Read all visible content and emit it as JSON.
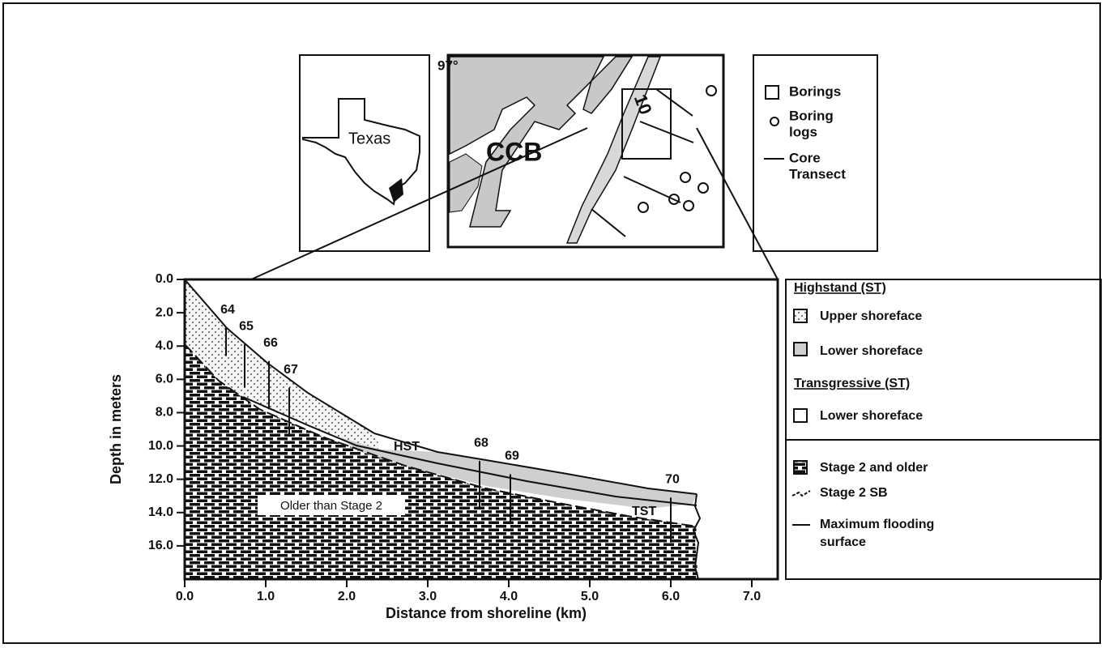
{
  "maps": {
    "longitude": "97°",
    "texas_label": "Texas",
    "bay_label": "CCB",
    "route_label": "10"
  },
  "map_legend": [
    {
      "lines": [
        "Borings"
      ]
    },
    {
      "lines": [
        "Boring",
        "logs"
      ]
    },
    {
      "lines": [
        "Core",
        "Transect"
      ]
    }
  ],
  "section": {
    "ylabel": "Depth in meters",
    "xlabel": "Distance from shoreline (km)",
    "xlim": [
      0,
      7.32
    ],
    "ylim": [
      0,
      18
    ],
    "xticks": [
      {
        "value": 0,
        "label": "0.0"
      },
      {
        "value": 1,
        "label": "1.0"
      },
      {
        "value": 2,
        "label": "2.0"
      },
      {
        "value": 3,
        "label": "3.0"
      },
      {
        "value": 4,
        "label": "4.0"
      },
      {
        "value": 5,
        "label": "5.0"
      },
      {
        "value": 6,
        "label": "6.0"
      },
      {
        "value": 7,
        "label": "7.0"
      }
    ],
    "yticks": [
      {
        "value": 0,
        "label": "0.0"
      },
      {
        "value": 2,
        "label": "2.0"
      },
      {
        "value": 4,
        "label": "4.0"
      },
      {
        "value": 6,
        "label": "6.0"
      },
      {
        "value": 8,
        "label": "8.0"
      },
      {
        "value": 10,
        "label": "10.0"
      },
      {
        "value": 12,
        "label": "12.0"
      },
      {
        "value": 14,
        "label": "14.0"
      },
      {
        "value": 16,
        "label": "16.0"
      }
    ],
    "boreholes": [
      {
        "label": "64",
        "x": 0.51,
        "top": 2.9,
        "bottom": 4.6
      },
      {
        "label": "65",
        "x": 0.74,
        "top": 3.9,
        "bottom": 6.5
      },
      {
        "label": "66",
        "x": 1.04,
        "top": 4.9,
        "bottom": 7.8
      },
      {
        "label": "67",
        "x": 1.29,
        "top": 6.5,
        "bottom": 9.3
      },
      {
        "label": "68",
        "x": 3.64,
        "top": 10.9,
        "bottom": 13.7
      },
      {
        "label": "69",
        "x": 4.02,
        "top": 11.7,
        "bottom": 14.7
      },
      {
        "label": "70",
        "x": 6.0,
        "top": 13.1,
        "bottom": 15.8
      }
    ],
    "annotations": {
      "hst": "HST",
      "tst": "TST",
      "older": "Older than Stage 2"
    }
  },
  "legend": {
    "highstand": "Highstand (ST)",
    "upper_shoreface": "Upper shoreface",
    "lower_shoreface_hst": "Lower shoreface",
    "transgressive": "Transgressive (ST)",
    "lower_shoreface_tst": "Lower shoreface",
    "stage2_older": "Stage 2 and older",
    "stage2_sb": "Stage 2 SB",
    "mfs_lines": [
      "Maximum flooding",
      "surface"
    ]
  }
}
